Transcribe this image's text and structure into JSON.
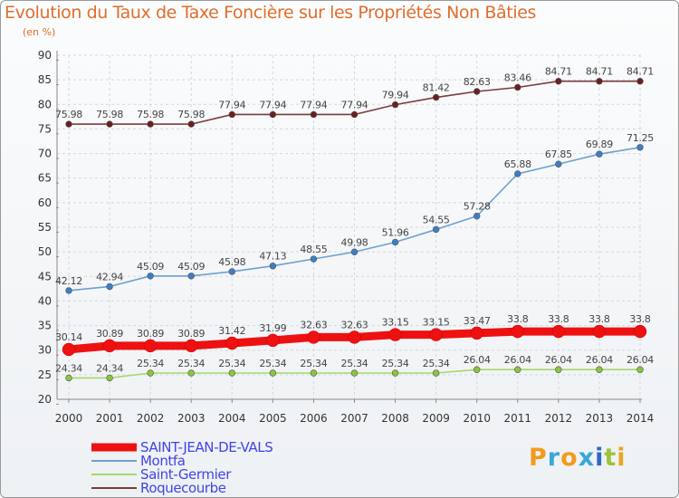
{
  "chart_data": {
    "type": "line",
    "title": "Evolution du Taux de Taxe Foncière sur les Propriétés Non Bâties",
    "unit_label": "(en %)",
    "x": [
      "2000",
      "2001",
      "2002",
      "2003",
      "2004",
      "2005",
      "2006",
      "2007",
      "2008",
      "2009",
      "2010",
      "2011",
      "2012",
      "2013",
      "2014"
    ],
    "ylim": [
      20,
      90
    ],
    "yticks": [
      20,
      25,
      30,
      35,
      40,
      45,
      50,
      55,
      60,
      65,
      70,
      75,
      80,
      85,
      90
    ],
    "series": [
      {
        "name": "Roquecourbe",
        "color": "#7a3b3b",
        "dot": "#6b1f1f",
        "values": [
          75.98,
          75.98,
          75.98,
          75.98,
          77.94,
          77.94,
          77.94,
          77.94,
          79.94,
          81.42,
          82.63,
          83.46,
          84.71,
          84.71,
          84.71
        ],
        "labels": [
          "75.98",
          "75.98",
          "75.98",
          "75.98",
          "77.94",
          "77.94",
          "77.94",
          "77.94",
          "79.94",
          "81.42",
          "82.63",
          "83.46",
          "84.71",
          "84.71",
          "84.71"
        ]
      },
      {
        "name": "Montfa",
        "color": "#6fa0d0",
        "dot": "#3c7fc4",
        "values": [
          42.12,
          42.94,
          45.09,
          45.09,
          45.98,
          47.13,
          48.55,
          49.98,
          51.96,
          54.55,
          57.28,
          65.88,
          67.85,
          69.89,
          71.25
        ],
        "labels": [
          "42.12",
          "42.94",
          "45.09",
          "45.09",
          "45.98",
          "47.13",
          "48.55",
          "49.98",
          "51.96",
          "54.55",
          "57.28",
          "65.88",
          "67.85",
          "69.89",
          "71.25"
        ]
      },
      {
        "name": "SAINT-JEAN-DE-VALS",
        "color": "#ee1111",
        "dot": "#ee1111",
        "values": [
          30.14,
          30.89,
          30.89,
          30.89,
          31.42,
          31.99,
          32.63,
          32.63,
          33.15,
          33.15,
          33.47,
          33.8,
          33.8,
          33.8,
          33.8
        ],
        "labels": [
          "30.14",
          "30.89",
          "30.89",
          "30.89",
          "31.42",
          "31.99",
          "32.63",
          "32.63",
          "33.15",
          "33.15",
          "33.47",
          "33.8",
          "33.8",
          "33.8",
          "33.8"
        ]
      },
      {
        "name": "Saint-Germier",
        "color": "#a6d86b",
        "dot": "#88c63f",
        "values": [
          24.34,
          24.34,
          25.34,
          25.34,
          25.34,
          25.34,
          25.34,
          25.34,
          25.34,
          25.34,
          26.04,
          26.04,
          26.04,
          26.04,
          26.04
        ],
        "labels": [
          "24.34",
          "24.34",
          "25.34",
          "25.34",
          "25.34",
          "25.34",
          "25.34",
          "25.34",
          "25.34",
          "25.34",
          "26.04",
          "26.04",
          "26.04",
          "26.04",
          "26.04"
        ]
      }
    ],
    "legend": [
      "SAINT-JEAN-DE-VALS",
      "Montfa",
      "Saint-Germier",
      "Roquecourbe"
    ],
    "legend_position": "bottom-left"
  },
  "brand": {
    "letters": [
      "P",
      "r",
      "o",
      "x",
      "i",
      "t",
      "i"
    ],
    "colors": [
      "#f39a1e",
      "#3aa7d6",
      "#f39a1e",
      "#3aa7d6",
      "#2e67c8",
      "#9cc43a",
      "#e6a820"
    ]
  }
}
